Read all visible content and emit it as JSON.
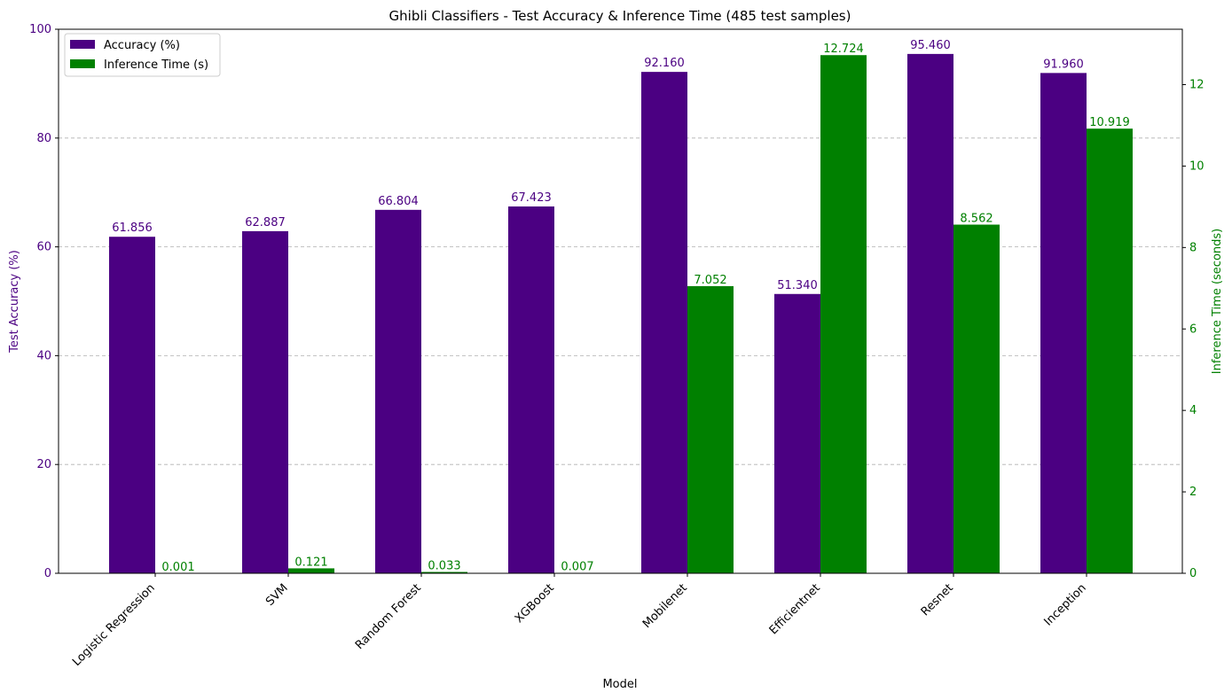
{
  "chart_data": {
    "type": "bar",
    "title": "Ghibli Classifiers - Test Accuracy & Inference Time (485 test samples)",
    "xlabel": "Model",
    "categories": [
      "Logistic Regression",
      "SVM",
      "Random Forest",
      "XGBoost",
      "Mobilenet",
      "Efficientnet",
      "Resnet",
      "Inception"
    ],
    "series": [
      {
        "name": "Accuracy (%)",
        "axis": "left",
        "color": "#4b0082",
        "values": [
          61.856,
          62.887,
          66.804,
          67.423,
          92.16,
          51.34,
          95.46,
          91.96
        ],
        "labels": [
          "61.856",
          "62.887",
          "66.804",
          "67.423",
          "92.160",
          "51.340",
          "95.460",
          "91.960"
        ]
      },
      {
        "name": "Inference Time (s)",
        "axis": "right",
        "color": "#008000",
        "values": [
          0.001,
          0.121,
          0.033,
          0.007,
          7.052,
          12.724,
          8.562,
          10.919
        ],
        "labels": [
          "0.001",
          "0.121",
          "0.033",
          "0.007",
          "7.052",
          "12.724",
          "8.562",
          "10.919"
        ]
      }
    ],
    "y_left": {
      "label": "Test Accuracy (%)",
      "lim": [
        0,
        100
      ],
      "ticks": [
        0,
        20,
        40,
        60,
        80,
        100
      ],
      "tick_labels": [
        "0",
        "20",
        "40",
        "60",
        "80",
        "100"
      ],
      "color": "#4b0082"
    },
    "y_right": {
      "label": "Inference Time (seconds)",
      "lim": [
        0,
        13.36
      ],
      "ticks": [
        0,
        2,
        4,
        6,
        8,
        10,
        12
      ],
      "tick_labels": [
        "0",
        "2",
        "4",
        "6",
        "8",
        "10",
        "12"
      ],
      "color": "#008000"
    },
    "grid": "horizontal dashed (left axis)",
    "legend_placement": "top-left"
  }
}
